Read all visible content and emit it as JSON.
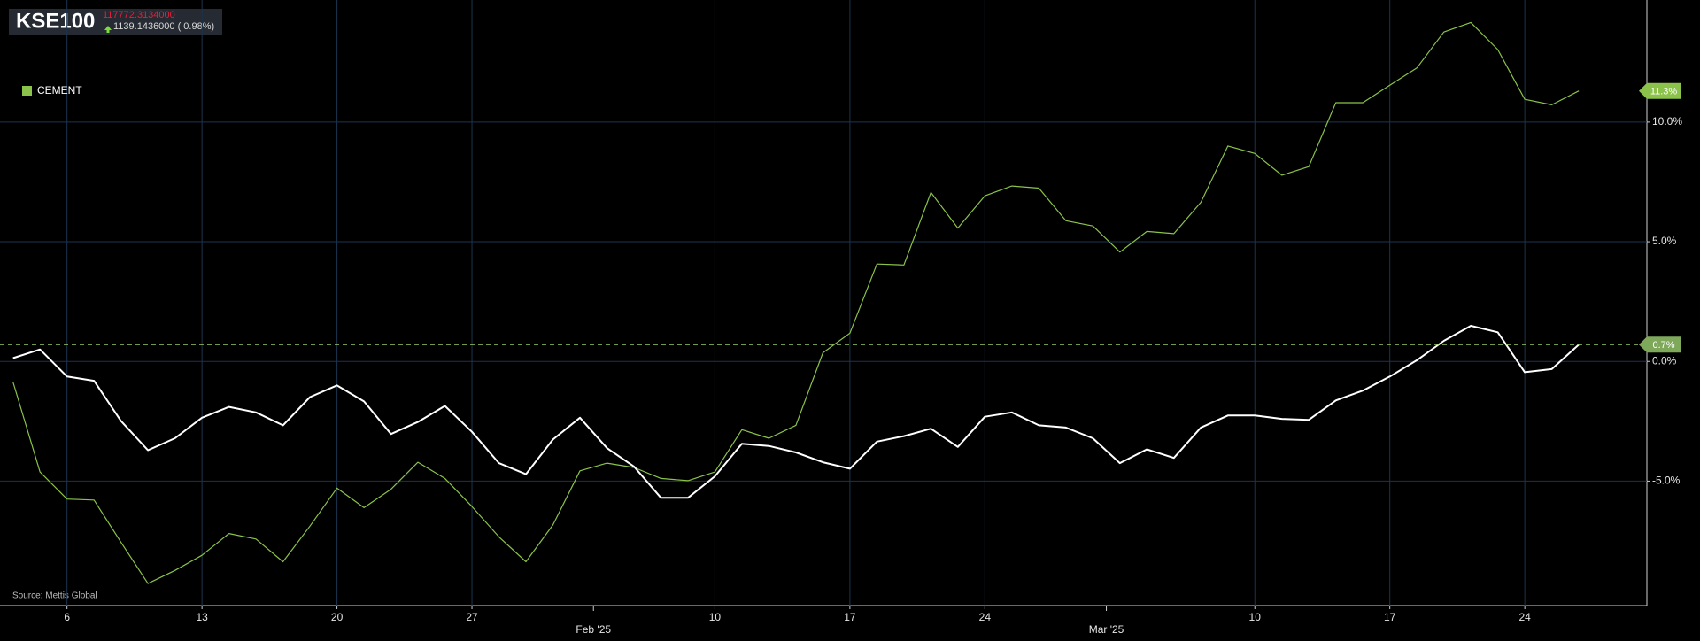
{
  "header": {
    "price": "117772.3134000",
    "change": "1139.1436000 ( 0.98%)"
  },
  "chart_data": {
    "type": "line",
    "categories": [
      null,
      null,
      "6",
      null,
      null,
      null,
      null,
      "13",
      null,
      null,
      null,
      null,
      "20",
      null,
      null,
      null,
      null,
      "27",
      null,
      null,
      null,
      null,
      null,
      null,
      null,
      null,
      "10",
      null,
      null,
      null,
      null,
      "17",
      null,
      null,
      null,
      null,
      "24",
      null,
      null,
      null,
      null,
      null,
      null,
      null,
      null,
      null,
      "10",
      null,
      null,
      null,
      null,
      "17",
      null,
      null,
      null,
      null,
      "24",
      null,
      null
    ],
    "month_ticks": [
      {
        "value": 21.5,
        "label": "Feb '25"
      },
      {
        "value": 40.5,
        "label": "Mar '25"
      }
    ],
    "series": [
      {
        "name": "KSE100",
        "color": "#ffffff",
        "legend": false,
        "reference_line": true,
        "end_label": "0.7%",
        "values": [
          0.14,
          0.5,
          -0.63,
          -0.81,
          -2.49,
          -3.71,
          -3.21,
          -2.35,
          -1.9,
          -2.13,
          -2.67,
          -1.49,
          -1.0,
          -1.67,
          -3.03,
          -2.53,
          -1.86,
          -2.94,
          -4.25,
          -4.71,
          -3.26,
          -2.35,
          -3.62,
          -4.39,
          -5.7,
          -5.7,
          -4.8,
          -3.44,
          -3.53,
          -3.8,
          -4.21,
          -4.48,
          -3.35,
          -3.12,
          -2.81,
          -3.57,
          -2.31,
          -2.13,
          -2.67,
          -2.76,
          -3.21,
          -4.25,
          -3.67,
          -4.03,
          -2.76,
          -2.26,
          -2.26,
          -2.4,
          -2.44,
          -1.63,
          -1.22,
          -0.63,
          0.05,
          0.86,
          1.49,
          1.22,
          -0.45,
          -0.32,
          0.7
        ]
      },
      {
        "name": "CEMENT",
        "color": "#8bc34a",
        "legend": true,
        "reference_line": false,
        "end_label": "11.3%",
        "values": [
          -0.86,
          -4.62,
          -5.75,
          -5.79,
          -7.56,
          -9.28,
          -8.73,
          -8.1,
          -7.19,
          -7.42,
          -8.37,
          -6.88,
          -5.29,
          -6.11,
          -5.34,
          -4.21,
          -4.89,
          -6.06,
          -7.33,
          -8.37,
          -6.83,
          -4.57,
          -4.25,
          -4.43,
          -4.89,
          -4.98,
          -4.62,
          -2.85,
          -3.21,
          -2.67,
          0.36,
          1.18,
          4.07,
          4.03,
          7.06,
          5.57,
          6.92,
          7.33,
          7.24,
          5.88,
          5.66,
          4.57,
          5.43,
          5.34,
          6.65,
          9.0,
          8.69,
          7.78,
          8.14,
          10.81,
          10.81,
          11.54,
          12.26,
          13.76,
          14.16,
          13.03,
          10.95,
          10.72,
          11.3
        ]
      }
    ],
    "ylim": [
      -10.2,
      15.1
    ],
    "yticks": [
      {
        "value": -5,
        "label": "-5.0%"
      },
      {
        "value": 0,
        "label": "0.0%"
      },
      {
        "value": 5,
        "label": "5.0%"
      },
      {
        "value": 10,
        "label": "10.0%"
      }
    ],
    "grid": true,
    "source": "Source: Mettis Global"
  }
}
